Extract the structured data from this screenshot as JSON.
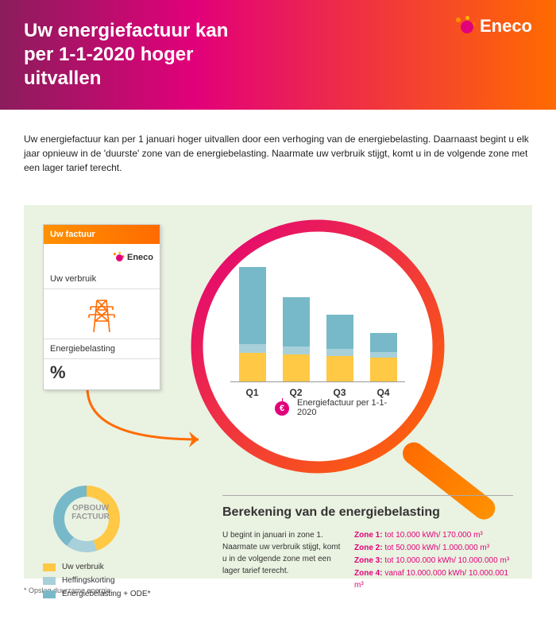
{
  "brand": "Eneco",
  "colors": {
    "magenta": "#e2007a",
    "orange": "#ff6b00",
    "orange_light": "#ff9100",
    "yellow": "#ffc845",
    "teal": "#77b9c8",
    "teal_light": "#a8d0da",
    "panel_bg": "#eaf2e1",
    "text": "#333333"
  },
  "header_title": "Uw energiefactuur kan per 1-1-2020 hoger uitvallen",
  "lead_text": "Uw energiefactuur kan per 1 januari hoger uitvallen door een verhoging van de energiebelasting. Daarnaast begint u elk jaar opnieuw in de 'duurste' zone van de energiebelasting. Naarmate uw verbruik stijgt, komt u in de volgende zone met een lager tarief terecht.",
  "card": {
    "title": "Uw factuur",
    "row1": "Uw verbruik",
    "row2": "Energiebelasting",
    "row3": "%"
  },
  "chart": {
    "type": "stacked-bar",
    "categories": [
      "Q1",
      "Q2",
      "Q3",
      "Q4"
    ],
    "series": [
      {
        "name": "Uw verbruik",
        "color": "#ffc845",
        "values": [
          34,
          32,
          30,
          28
        ]
      },
      {
        "name": "Heffingskorting",
        "color": "#a8d0da",
        "values": [
          10,
          9,
          8,
          7
        ]
      },
      {
        "name": "Energiebelasting + ODE*",
        "color": "#77b9c8",
        "values": [
          90,
          58,
          40,
          22
        ]
      }
    ],
    "y_max": 140,
    "caption": "Energiefactuur per 1-1-2020",
    "euro_symbol": "€"
  },
  "donut": {
    "label": "OPBOUW FACTUUR",
    "segments": [
      {
        "color": "#ffc845",
        "pct": 45
      },
      {
        "color": "#a8d0da",
        "pct": 15
      },
      {
        "color": "#77b9c8",
        "pct": 40
      }
    ]
  },
  "legend": [
    {
      "color": "#ffc845",
      "label": "Uw verbruik"
    },
    {
      "color": "#a8d0da",
      "label": "Heffingskorting"
    },
    {
      "color": "#77b9c8",
      "label": "Energiebelasting + ODE*"
    }
  ],
  "calc": {
    "title": "Berekening van de energiebelasting",
    "intro": "U begint in januari in zone 1. Naarmate uw verbruik stijgt, komt u in de volgende zone met een lager tarief terecht.",
    "zones": [
      {
        "n": "Zone 1:",
        "v": "tot 10.000 kWh/ 170.000 m³"
      },
      {
        "n": "Zone 2:",
        "v": "tot 50.000 kWh/ 1.000.000 m³"
      },
      {
        "n": "Zone 3:",
        "v": "tot 10.000.000 kWh/ 10.000.000 m³"
      },
      {
        "n": "Zone 4:",
        "v": "vanaf 10.000.000 kWh/ 10.000.001 m³"
      }
    ]
  },
  "footnote": "* Opslag duurzame energie."
}
